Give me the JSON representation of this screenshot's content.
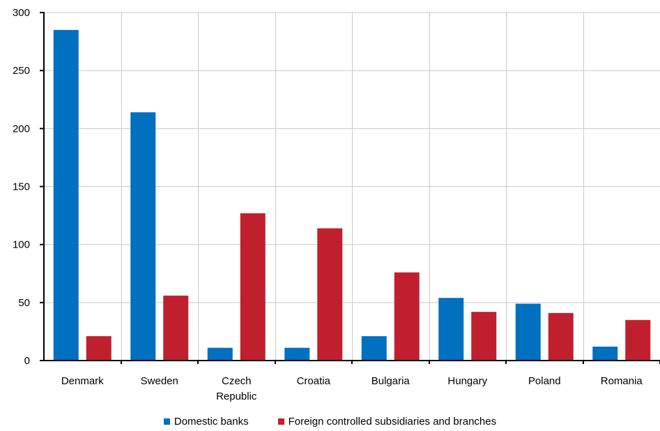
{
  "chart_data": {
    "type": "bar",
    "categories": [
      "Denmark",
      "Sweden",
      "Czech\nRepublic",
      "Croatia",
      "Bulgaria",
      "Hungary",
      "Poland",
      "Romania"
    ],
    "series": [
      {
        "name": "Domestic banks",
        "color": "#0070c0",
        "values": [
          285,
          214,
          11,
          11,
          21,
          54,
          49,
          12
        ]
      },
      {
        "name": "Foreign controlled subsidiaries and branches",
        "color": "#c0202e",
        "values": [
          21,
          56,
          127,
          114,
          76,
          42,
          41,
          35
        ]
      }
    ],
    "ylim": [
      0,
      300
    ],
    "yticks": [
      0,
      50,
      100,
      150,
      200,
      250,
      300
    ],
    "grid": true,
    "legend": "bottom"
  }
}
